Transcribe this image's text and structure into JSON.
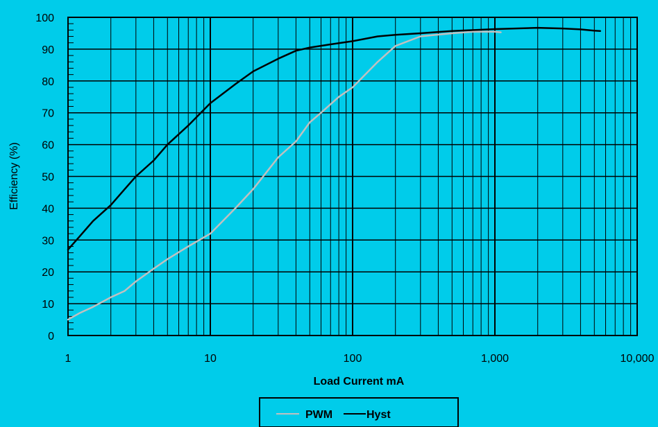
{
  "chart_data": {
    "type": "line",
    "xscale": "log",
    "xlim": [
      1,
      10000
    ],
    "ylim": [
      0,
      100
    ],
    "xlabel": "Load Current mA",
    "ylabel": "Efficiency (%)",
    "xticks": [
      {
        "value": 1,
        "label": "1"
      },
      {
        "value": 10,
        "label": "10"
      },
      {
        "value": 100,
        "label": "100"
      },
      {
        "value": 1000,
        "label": "1,000"
      },
      {
        "value": 10000,
        "label": "10,000"
      }
    ],
    "yticks": [
      {
        "value": 0,
        "label": "0"
      },
      {
        "value": 10,
        "label": "10"
      },
      {
        "value": 20,
        "label": "20"
      },
      {
        "value": 30,
        "label": "30"
      },
      {
        "value": 40,
        "label": "40"
      },
      {
        "value": 50,
        "label": "50"
      },
      {
        "value": 60,
        "label": "60"
      },
      {
        "value": 70,
        "label": "70"
      },
      {
        "value": 80,
        "label": "80"
      },
      {
        "value": 90,
        "label": "90"
      },
      {
        "value": 100,
        "label": "100"
      }
    ],
    "grid": true,
    "legend_position": "bottom",
    "colors": {
      "background": "#00ccea",
      "grid": "#000000",
      "pwm": "#c0c0c0",
      "hyst": "#000000"
    },
    "series": [
      {
        "name": "PWM",
        "x": [
          1,
          1.2,
          1.5,
          2,
          2.5,
          3,
          4,
          5,
          7,
          10,
          15,
          20,
          30,
          40,
          50,
          60,
          80,
          100,
          150,
          200,
          300,
          500,
          700,
          1000,
          1100
        ],
        "y": [
          5,
          7,
          9,
          12,
          14,
          17,
          21,
          24,
          28,
          32,
          40,
          46,
          56,
          61,
          67,
          70,
          75,
          78,
          86,
          91,
          94,
          95,
          95.5,
          95.5,
          95.3
        ]
      },
      {
        "name": "Hyst",
        "x": [
          1,
          1.2,
          1.5,
          2,
          2.5,
          3,
          4,
          5,
          7,
          10,
          15,
          20,
          30,
          40,
          50,
          70,
          100,
          150,
          200,
          300,
          500,
          1000,
          2000,
          3000,
          4000,
          5000,
          5500
        ],
        "y": [
          27,
          31,
          36,
          41,
          46,
          50,
          55,
          60,
          66,
          73,
          79,
          83,
          87,
          89.5,
          90.5,
          91.5,
          92.5,
          94,
          94.5,
          95,
          95.7,
          96.3,
          96.7,
          96.5,
          96.2,
          95.8,
          95.7
        ]
      }
    ]
  }
}
